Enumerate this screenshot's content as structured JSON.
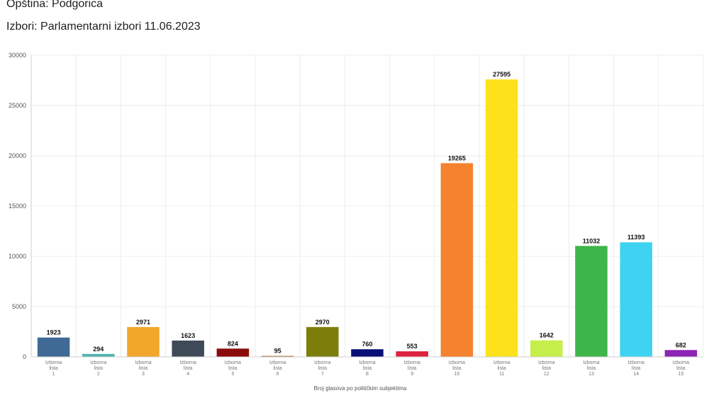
{
  "header": {
    "municipality": "Opština: Podgorica",
    "election": "Izbori: Parlamentarni izbori 11.06.2023"
  },
  "chart_data": {
    "type": "bar",
    "title": "",
    "xlabel": "Broj glasova po političkim subjektima",
    "ylabel": "",
    "ylim": [
      0,
      30000
    ],
    "yticks": [
      0,
      5000,
      10000,
      15000,
      20000,
      25000,
      30000
    ],
    "grid": true,
    "categories": [
      [
        "Izborna",
        "lista",
        "1"
      ],
      [
        "Izborna",
        "lista",
        "2"
      ],
      [
        "Izborna",
        "lista",
        "3"
      ],
      [
        "Izborna",
        "lista",
        "4"
      ],
      [
        "Izborna",
        "lista",
        "5"
      ],
      [
        "Izborna",
        "lista",
        "6"
      ],
      [
        "Izborna",
        "lista",
        "7"
      ],
      [
        "Izborna",
        "lista",
        "8"
      ],
      [
        "Izborna",
        "lista",
        "9"
      ],
      [
        "Izborna",
        "lista",
        "10"
      ],
      [
        "Izborna",
        "lista",
        "11"
      ],
      [
        "Izborna",
        "lista",
        "12"
      ],
      [
        "Izborna",
        "lista",
        "13"
      ],
      [
        "Izborna",
        "lista",
        "14"
      ],
      [
        "Izborna",
        "lista",
        "15"
      ]
    ],
    "values": [
      1923,
      294,
      2971,
      1623,
      824,
      95,
      2970,
      760,
      553,
      19265,
      27595,
      1642,
      11032,
      11393,
      682
    ],
    "colors": [
      "#3f6a96",
      "#4fb3b0",
      "#f2a62a",
      "#3e4a57",
      "#8b0a0a",
      "#9a6a33",
      "#7d7d0c",
      "#0a0f78",
      "#e0203f",
      "#f4822f",
      "#fde11b",
      "#c6ee4a",
      "#3db54a",
      "#3fd3f2",
      "#8b23b4"
    ]
  }
}
